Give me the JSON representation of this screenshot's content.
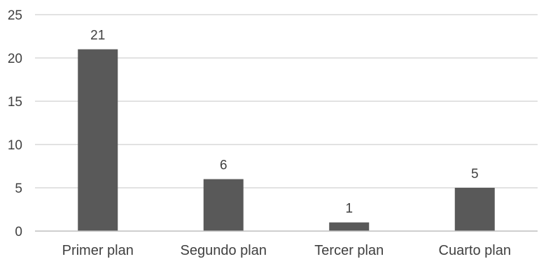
{
  "chart_data": {
    "type": "bar",
    "categories": [
      "Primer plan",
      "Segundo plan",
      "Tercer plan",
      "Cuarto plan"
    ],
    "values": [
      21,
      6,
      1,
      5
    ],
    "data_labels": [
      "21",
      "6",
      "1",
      "5"
    ],
    "title": "",
    "xlabel": "",
    "ylabel": "",
    "ylim": [
      0,
      25
    ],
    "yticks": [
      0,
      5,
      10,
      15,
      20,
      25
    ],
    "ytick_labels": [
      "0",
      "5",
      "10",
      "15",
      "20",
      "25"
    ],
    "grid": true,
    "legend": "none",
    "bar_color": "#595959",
    "grid_color": "#d9d9d9",
    "text_color": "#404040"
  }
}
